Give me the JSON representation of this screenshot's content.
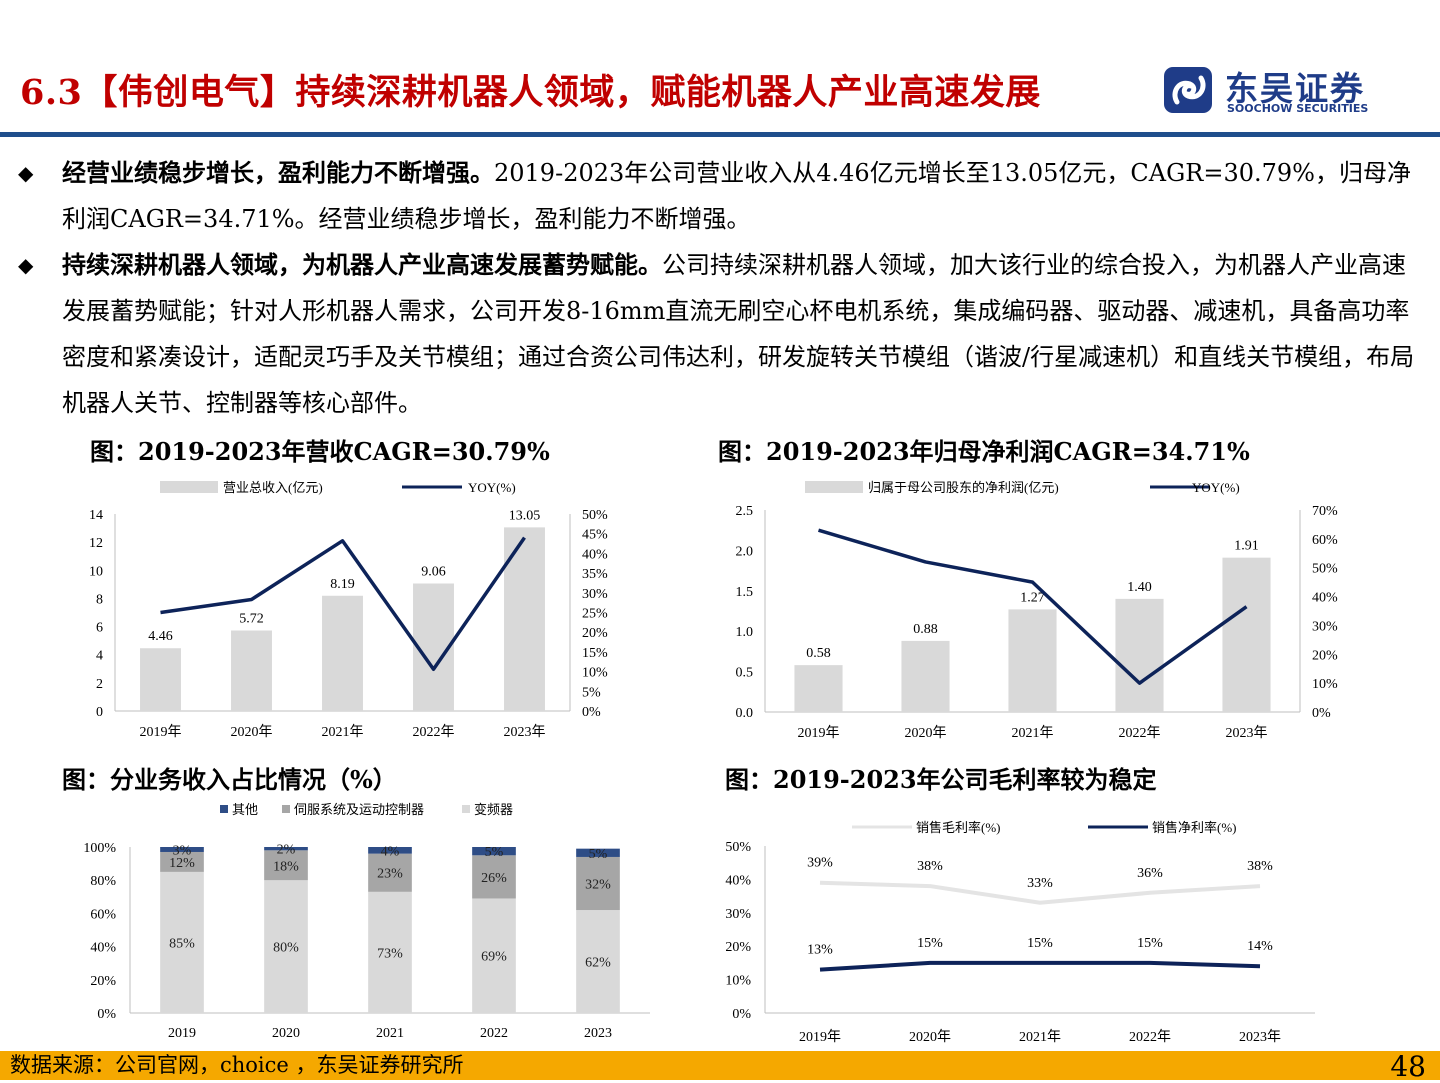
{
  "header": {
    "title": "6.3【伟创电气】持续深耕机器人领域，赋能机器人产业高速发展",
    "logo_cn": "东吴证券",
    "logo_en": "SOOCHOW SECURITIES"
  },
  "bullets": [
    {
      "bold": "经营业绩稳步增长，盈利能力不断增强。",
      "text": "2019-2023年公司营业收入从4.46亿元增长至13.05亿元，CAGR=30.79%，归母净利润CAGR=34.71%。经营业绩稳步增长，盈利能力不断增强。"
    },
    {
      "bold": "持续深耕机器人领域，为机器人产业高速发展蓄势赋能。",
      "text": "公司持续深耕机器人领域，加大该行业的综合投入，为机器人产业高速发展蓄势赋能；针对人形机器人需求，公司开发8-16mm直流无刷空心杯电机系统，集成编码器、驱动器、减速机，具备高功率密度和紧凑设计，适配灵巧手及关节模组；通过合资公司伟达利，研发旋转关节模组（谐波/行星减速机）和直线关节模组，布局机器人关节、控制器等核心部件。"
    }
  ],
  "chart_titles": {
    "c1": "图：2019-2023年营收CAGR=30.79%",
    "c2": "图：2019-2023年归母净利润CAGR=34.71%",
    "c3": "图：分业务收入占比情况（%）",
    "c4": "图：2019-2023年公司毛利率较为稳定"
  },
  "chart_data": [
    {
      "type": "bar",
      "categories": [
        "2019年",
        "2020年",
        "2021年",
        "2022年",
        "2023年"
      ],
      "series": [
        {
          "name": "营业总收入(亿元)",
          "values": [
            4.46,
            5.72,
            8.19,
            9.06,
            13.05
          ],
          "axis": "left",
          "color": "#d9d9d9"
        },
        {
          "name": "YOY(%)",
          "values": [
            25,
            28.3,
            43.2,
            10.6,
            44
          ],
          "axis": "right",
          "type": "line",
          "color": "#0d2359"
        }
      ],
      "ylim": [
        0,
        14
      ],
      "yticks": [
        "0",
        "2",
        "4",
        "6",
        "8",
        "10",
        "12",
        "14"
      ],
      "y2lim": [
        0,
        50
      ],
      "y2ticks": [
        "0%",
        "5%",
        "10%",
        "15%",
        "20%",
        "25%",
        "30%",
        "35%",
        "40%",
        "45%",
        "50%"
      ],
      "labels": [
        "4.46",
        "5.72",
        "8.19",
        "9.06",
        "13.05"
      ],
      "legend": "top"
    },
    {
      "type": "bar",
      "categories": [
        "2019年",
        "2020年",
        "2021年",
        "2022年",
        "2023年"
      ],
      "series": [
        {
          "name": "归属于母公司股东的净利润(亿元)",
          "values": [
            0.58,
            0.88,
            1.27,
            1.4,
            1.91
          ],
          "axis": "left",
          "color": "#d9d9d9"
        },
        {
          "name": "YOY(%)",
          "values": [
            63,
            52,
            45,
            10,
            36.5
          ],
          "axis": "right",
          "type": "line",
          "color": "#0d2359"
        }
      ],
      "ylim": [
        0,
        2.5
      ],
      "yticks": [
        "0.0",
        "0.5",
        "1.0",
        "1.5",
        "2.0",
        "2.5"
      ],
      "y2lim": [
        0,
        70
      ],
      "y2ticks": [
        "0%",
        "10%",
        "20%",
        "30%",
        "40%",
        "50%",
        "60%",
        "70%"
      ],
      "labels": [
        "0.58",
        "0.88",
        "1.27",
        "1.40",
        "1.91"
      ],
      "legend": "top"
    },
    {
      "type": "bar",
      "stacked": true,
      "categories": [
        "2019",
        "2020",
        "2021",
        "2022",
        "2023"
      ],
      "series": [
        {
          "name": "变频器",
          "values": [
            85,
            80,
            73,
            69,
            62
          ],
          "labels": [
            "85%",
            "80%",
            "73%",
            "69%",
            "62%"
          ],
          "color": "#d9d9d9"
        },
        {
          "name": "伺服系统及运动控制器",
          "values": [
            12,
            18,
            23,
            26,
            32
          ],
          "labels": [
            "12%",
            "18%",
            "23%",
            "26%",
            "32%"
          ],
          "color": "#a6a6a6"
        },
        {
          "name": "其他",
          "values": [
            3,
            2,
            4,
            5,
            5
          ],
          "labels": [
            "3%",
            "2%",
            "4%",
            "5%",
            "5%"
          ],
          "color": "#2e4d86"
        }
      ],
      "ylim": [
        0,
        100
      ],
      "yticks": [
        "0%",
        "20%",
        "40%",
        "60%",
        "80%",
        "100%"
      ],
      "legend": "top"
    },
    {
      "type": "line",
      "categories": [
        "2019年",
        "2020年",
        "2021年",
        "2022年",
        "2023年"
      ],
      "series": [
        {
          "name": "销售毛利率(%)",
          "values": [
            39,
            38,
            33,
            36,
            38
          ],
          "labels": [
            "39%",
            "38%",
            "33%",
            "36%",
            "38%"
          ],
          "color": "#e4e4e4"
        },
        {
          "name": "销售净利率(%)",
          "values": [
            13,
            15,
            15,
            15,
            14
          ],
          "labels": [
            "13%",
            "15%",
            "15%",
            "15%",
            "14%"
          ],
          "color": "#0d2359"
        }
      ],
      "ylim": [
        0,
        50
      ],
      "yticks": [
        "0%",
        "10%",
        "20%",
        "30%",
        "40%",
        "50%"
      ],
      "legend": "top"
    }
  ],
  "footer": {
    "source": "数据来源：公司官网，choice ，东吴证券研究所",
    "page": "48"
  }
}
